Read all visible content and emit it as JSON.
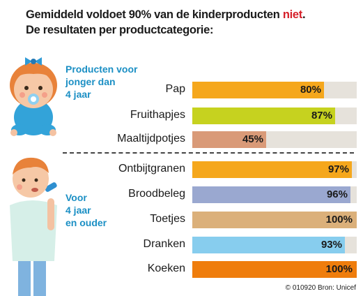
{
  "title": {
    "line1_a": "Gemiddeld voldoet 90% van de kinderproducten ",
    "line1_highlight": "niet",
    "line1_end": ".",
    "line2": "De resultaten per productcategorie:",
    "highlight_color": "#d6202a"
  },
  "groups": {
    "young": [
      "Producten voor",
      "jonger dan",
      "4 jaar"
    ],
    "older": [
      "Voor",
      "4 jaar",
      "en ouder"
    ],
    "label_color": "#1b8fc4"
  },
  "credit": "© 010920 Bron: Unicef",
  "chart_data": {
    "type": "bar",
    "orientation": "horizontal",
    "categories": [
      "Pap",
      "Fruithapjes",
      "Maaltijdpotjes",
      "Ontbijtgranen",
      "Broodbeleg",
      "Toetjes",
      "Dranken",
      "Koeken"
    ],
    "values": [
      80,
      87,
      45,
      97,
      96,
      100,
      93,
      100
    ],
    "value_labels": [
      "80%",
      "87%",
      "45%",
      "97%",
      "96%",
      "100%",
      "93%",
      "100%"
    ],
    "colors": [
      "#f5a71c",
      "#c6d21f",
      "#d99a78",
      "#f5a71c",
      "#9aa8d0",
      "#dbb07a",
      "#87cdee",
      "#ef7d0c"
    ],
    "track_color": "#e6e2db",
    "xlim": [
      0,
      100
    ],
    "groups": [
      {
        "label_ref": "groups.young",
        "categories": [
          "Pap",
          "Fruithapjes",
          "Maaltijdpotjes"
        ]
      },
      {
        "label_ref": "groups.older",
        "categories": [
          "Ontbijtgranen",
          "Broodbeleg",
          "Toetjes",
          "Dranken",
          "Koeken"
        ]
      }
    ],
    "grid": false,
    "legend": "none"
  }
}
